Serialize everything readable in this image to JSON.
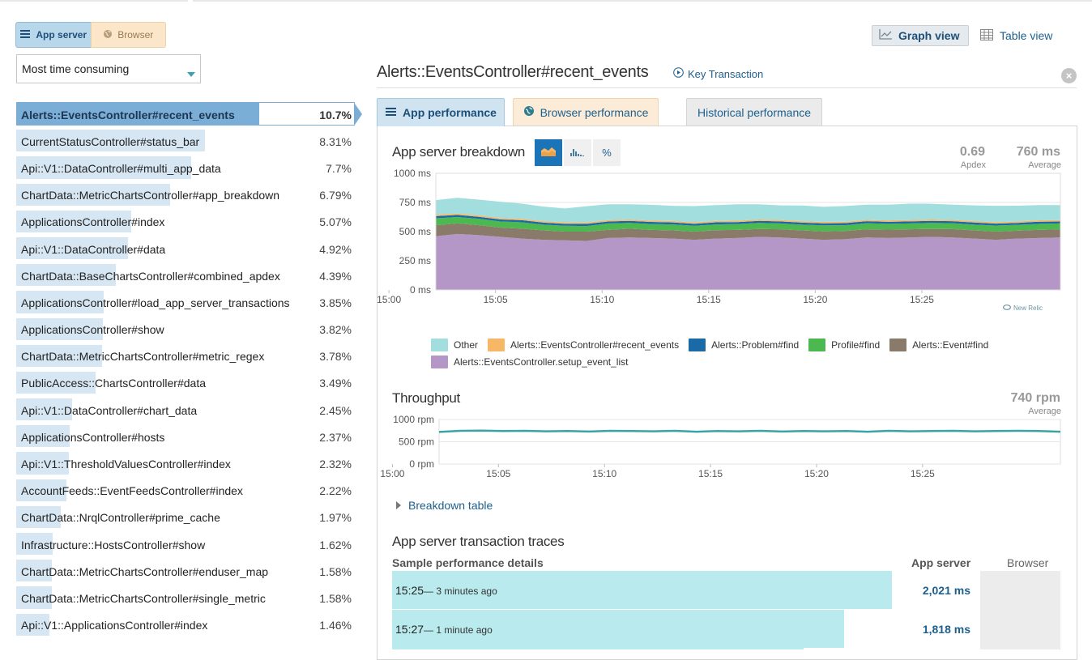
{
  "sidebar": {
    "app_server_label": "App server",
    "browser_label": "Browser",
    "sort_select": "Most time consuming",
    "transactions": [
      {
        "name": "Alerts::EventsController#recent_events",
        "pct": "10.7%",
        "share": 10.7
      },
      {
        "name": "CurrentStatusController#status_bar",
        "pct": "8.31%",
        "share": 8.31
      },
      {
        "name": "Api::V1::DataController#multi_app_data",
        "pct": "7.7%",
        "share": 7.7
      },
      {
        "name": "ChartData::MetricChartsController#app_breakdown",
        "pct": "6.79%",
        "share": 6.79
      },
      {
        "name": "ApplicationsController#index",
        "pct": "5.07%",
        "share": 5.07
      },
      {
        "name": "Api::V1::DataController#data",
        "pct": "4.92%",
        "share": 4.92
      },
      {
        "name": "ChartData::BaseChartsController#combined_apdex",
        "pct": "4.39%",
        "share": 4.39
      },
      {
        "name": "ApplicationsController#load_app_server_transactions",
        "pct": "3.85%",
        "share": 3.85
      },
      {
        "name": "ApplicationsController#show",
        "pct": "3.82%",
        "share": 3.82
      },
      {
        "name": "ChartData::MetricChartsController#metric_regex",
        "pct": "3.78%",
        "share": 3.78
      },
      {
        "name": "PublicAccess::ChartsController#data",
        "pct": "3.49%",
        "share": 3.49
      },
      {
        "name": "Api::V1::DataController#chart_data",
        "pct": "2.45%",
        "share": 2.45
      },
      {
        "name": "ApplicationsController#hosts",
        "pct": "2.37%",
        "share": 2.37
      },
      {
        "name": "Api::V1::ThresholdValuesController#index",
        "pct": "2.32%",
        "share": 2.32
      },
      {
        "name": "AccountFeeds::EventFeedsController#index",
        "pct": "2.22%",
        "share": 2.22
      },
      {
        "name": "ChartData::NrqlController#prime_cache",
        "pct": "1.97%",
        "share": 1.97
      },
      {
        "name": "Infrastructure::HostsController#show",
        "pct": "1.62%",
        "share": 1.62
      },
      {
        "name": "ChartData::MetricChartsController#enduser_map",
        "pct": "1.58%",
        "share": 1.58
      },
      {
        "name": "ChartData::MetricChartsController#single_metric",
        "pct": "1.58%",
        "share": 1.58
      },
      {
        "name": "Api::V1::ApplicationsController#index",
        "pct": "1.46%",
        "share": 1.46
      }
    ]
  },
  "header": {
    "graph_view": "Graph view",
    "table_view": "Table view",
    "title": "Alerts::EventsController#recent_events",
    "key_transaction": "Key Transaction"
  },
  "tabs": {
    "app": "App performance",
    "browser": "Browser performance",
    "historical": "Historical performance"
  },
  "breakdown": {
    "title": "App server breakdown",
    "percent_button": "%",
    "apdex_value": "0.69",
    "apdex_label": "Apdex",
    "avg_value": "760 ms",
    "avg_label": "Average",
    "watermark": "New Relic"
  },
  "throughput": {
    "title": "Throughput",
    "avg_value": "740 rpm",
    "avg_label": "Average"
  },
  "breakdown_table_link": "Breakdown table",
  "traces": {
    "title": "App server transaction traces",
    "col_details": "Sample performance details",
    "col_app": "App server",
    "col_browser": "Browser",
    "rows": [
      {
        "time": "15:25",
        "ago": "— 3 minutes ago",
        "ms": "2,021 ms",
        "fill": 0.85
      },
      {
        "time": "15:27",
        "ago": "— 1 minute ago",
        "ms": "1,818 ms",
        "fill": 0.769
      }
    ]
  },
  "colors": {
    "accent": "#1b74b8",
    "other": "#a3dedf",
    "recent_events": "#f6b867",
    "problem_find": "#1a6aa8",
    "profile_find": "#4cb950",
    "event_find": "#8a7a6a",
    "setup_event_list": "#b597c7",
    "throughput_line": "#3aa3a4"
  },
  "chart_data": [
    {
      "type": "area",
      "stacked": true,
      "title": "App server breakdown",
      "x_ticks": [
        "15:00",
        "15:05",
        "15:10",
        "15:15",
        "15:20",
        "15:25"
      ],
      "y_ticks": [
        "0 ms",
        "250 ms",
        "500 ms",
        "750 ms",
        "1000 ms"
      ],
      "ylim": [
        0,
        1000
      ],
      "x_start_min": 2.2,
      "x_end_min": 31.5,
      "x_tick_min": [
        0,
        5,
        10,
        15,
        20,
        25
      ],
      "series": [
        {
          "name": "Alerts::EventsController.setup_event_list",
          "color": "#b597c7",
          "values": [
            460,
            480,
            470,
            455,
            440,
            430,
            425,
            420,
            445,
            450,
            445,
            440,
            430,
            440,
            445,
            455,
            450,
            440,
            430,
            435,
            450,
            445,
            450,
            455,
            450,
            440,
            430,
            440,
            445,
            450
          ]
        },
        {
          "name": "Alerts::Event#find",
          "color": "#8a7a6a",
          "values": [
            95,
            90,
            85,
            80,
            85,
            80,
            75,
            80,
            70,
            75,
            70,
            70,
            70,
            72,
            70,
            68,
            70,
            70,
            72,
            70,
            70,
            72,
            70,
            68,
            72,
            70,
            70,
            68,
            70,
            70
          ]
        },
        {
          "name": "Profile#find",
          "color": "#4cb950",
          "values": [
            60,
            55,
            55,
            52,
            55,
            50,
            50,
            48,
            55,
            50,
            50,
            52,
            50,
            50,
            50,
            52,
            50,
            50,
            52,
            50,
            52,
            50,
            50,
            52,
            50,
            50,
            52,
            50,
            52,
            50
          ]
        },
        {
          "name": "Alerts::Problem#find",
          "color": "#1a6aa8",
          "values": [
            18,
            18,
            17,
            17,
            18,
            17,
            17,
            18,
            17,
            17,
            18,
            17,
            17,
            18,
            17,
            17,
            18,
            17,
            17,
            18,
            17,
            17,
            18,
            17,
            17,
            18,
            17,
            17,
            18,
            17
          ]
        },
        {
          "name": "Alerts::EventsController#recent_events",
          "color": "#f6b867",
          "values": [
            12,
            12,
            12,
            12,
            12,
            12,
            12,
            12,
            12,
            12,
            12,
            12,
            12,
            12,
            12,
            12,
            12,
            12,
            12,
            12,
            12,
            12,
            12,
            12,
            12,
            12,
            12,
            12,
            12,
            12
          ]
        },
        {
          "name": "Other",
          "color": "#a3dedf",
          "values": [
            125,
            135,
            135,
            140,
            130,
            125,
            120,
            140,
            135,
            130,
            135,
            130,
            140,
            135,
            140,
            130,
            125,
            135,
            130,
            135,
            130,
            135,
            140,
            135,
            130,
            135,
            140,
            135,
            130,
            128
          ]
        }
      ]
    },
    {
      "type": "line",
      "title": "Throughput",
      "x_ticks": [
        "15:00",
        "15:05",
        "15:10",
        "15:15",
        "15:20",
        "15:25"
      ],
      "y_ticks": [
        "0 rpm",
        "500 rpm",
        "1000 rpm"
      ],
      "ylim": [
        0,
        1000
      ],
      "x_start_min": 2.2,
      "x_end_min": 31.5,
      "x_tick_min": [
        0,
        5,
        10,
        15,
        20,
        25
      ],
      "series": [
        {
          "name": "Throughput",
          "color": "#3aa3a4",
          "values": [
            720,
            745,
            750,
            740,
            745,
            735,
            740,
            730,
            745,
            740,
            735,
            745,
            725,
            740,
            735,
            745,
            730,
            740,
            735,
            740,
            725,
            745,
            735,
            740,
            745,
            735,
            740,
            745,
            740,
            725
          ]
        }
      ]
    }
  ]
}
